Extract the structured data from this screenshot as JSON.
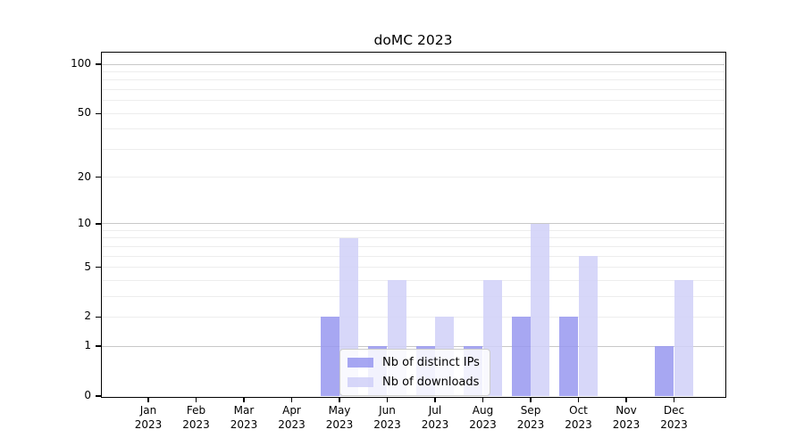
{
  "chart_data": {
    "type": "bar",
    "title": "doMC 2023",
    "categories": [
      "Jan",
      "Feb",
      "Mar",
      "Apr",
      "May",
      "Jun",
      "Jul",
      "Aug",
      "Sep",
      "Oct",
      "Nov",
      "Dec"
    ],
    "x_year_label": "2023",
    "series": [
      {
        "name": "Nb of distinct IPs",
        "color": "#9898f0",
        "opacity": 0.85,
        "values": [
          0,
          0,
          0,
          0,
          2,
          1,
          1,
          1,
          2,
          2,
          0,
          1
        ]
      },
      {
        "name": "Nb of downloads",
        "color": "#d0d0f8",
        "opacity": 0.85,
        "values": [
          0,
          0,
          0,
          0,
          8,
          4,
          2,
          4,
          10,
          6,
          0,
          4
        ]
      }
    ],
    "scale": "log1p",
    "ylim": [
      0,
      118
    ],
    "yticks": [
      100,
      50,
      20,
      10,
      5,
      2,
      1,
      0
    ],
    "grid_major": [
      1,
      10,
      100
    ],
    "grid_minor": [
      2,
      3,
      4,
      5,
      6,
      7,
      8,
      9,
      20,
      30,
      40,
      50,
      60,
      70,
      80,
      90
    ],
    "grid": "horizontal",
    "legend_position": "lower-center",
    "colors": {
      "major_grid": "#c8c8c8",
      "minor_grid": "#ededed",
      "spine": "#000000",
      "background": "#ffffff"
    }
  }
}
